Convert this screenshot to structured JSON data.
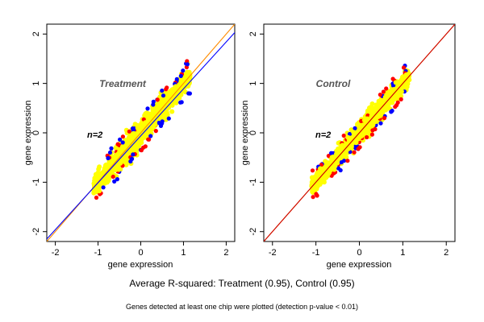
{
  "caption": "Average R-squared: Treatment (0.95), Control (0.95)",
  "footnote": "Genes detected at least one chip were plotted (detection p-value < 0.01)",
  "colors": {
    "points_main": "#ffff00",
    "points_red": "#ff0000",
    "points_blue": "#0000ff",
    "line_orange": "#ff8c00",
    "line_blue": "#0000ff",
    "line_red": "#cc0000"
  },
  "chart_data": [
    {
      "type": "scatter",
      "title": "Treatment",
      "xlabel": "gene expression",
      "ylabel": "gene expression",
      "n_label": "n=2",
      "xlim": [
        -2.2,
        2.2
      ],
      "ylim": [
        -2.2,
        2.2
      ],
      "xticks": [
        "-2",
        "-1",
        "0",
        "1",
        "2"
      ],
      "yticks": [
        "-2",
        "-1",
        "0",
        "1",
        "2"
      ],
      "point_cloud": {
        "x_range": [
          -1.1,
          1.15
        ],
        "spread": 0.13
      },
      "lines": [
        {
          "color": "orange",
          "intercept": 0.0,
          "slope": 1.0
        },
        {
          "color": "blue",
          "intercept": -0.06,
          "slope": 0.95
        }
      ]
    },
    {
      "type": "scatter",
      "title": "Control",
      "xlabel": "gene expression",
      "ylabel": "gene expression",
      "n_label": "n=2",
      "xlim": [
        -2.2,
        2.2
      ],
      "ylim": [
        -2.2,
        2.2
      ],
      "xticks": [
        "-2",
        "-1",
        "0",
        "1",
        "2"
      ],
      "yticks": [
        "-2",
        "-1",
        "0",
        "1",
        "2"
      ],
      "point_cloud": {
        "x_range": [
          -1.1,
          1.15
        ],
        "spread": 0.11
      },
      "lines": [
        {
          "color": "orange",
          "intercept": 0.0,
          "slope": 1.0
        },
        {
          "color": "red",
          "intercept": 0.0,
          "slope": 1.0
        }
      ]
    }
  ]
}
